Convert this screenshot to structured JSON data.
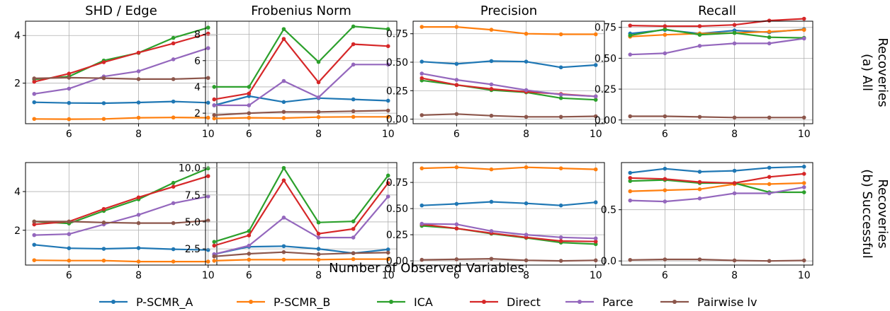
{
  "figure": {
    "xlabel": "Number of Observed Variables",
    "row_labels": [
      [
        "(a) All",
        "Recoveries"
      ],
      [
        "(b) Successful",
        "Recoveries"
      ]
    ],
    "legend": [
      {
        "name": "P-SCMR_A",
        "color": "#1f77b4"
      },
      {
        "name": "P-SCMR_B",
        "color": "#ff7f0e"
      },
      {
        "name": "ICA",
        "color": "#2ca02c"
      },
      {
        "name": "Direct",
        "color": "#d62728"
      },
      {
        "name": "Parce",
        "color": "#9467bd"
      },
      {
        "name": "Pairwise lv",
        "color": "#8c564b"
      }
    ]
  },
  "chart_data": [
    {
      "type": "line",
      "row": 0,
      "col": 0,
      "title": "SHD / Edge",
      "x": [
        5,
        6,
        7,
        8,
        9,
        10
      ],
      "xticks": [
        6,
        8,
        10
      ],
      "ylim": [
        0.3,
        4.6
      ],
      "yticks": [
        2,
        4
      ],
      "ytick_labels": [
        "2",
        "4"
      ],
      "grid": true,
      "series": [
        {
          "name": "P-SCMR_A",
          "values": [
            1.2,
            1.17,
            1.16,
            1.19,
            1.23,
            1.18
          ]
        },
        {
          "name": "P-SCMR_B",
          "values": [
            0.5,
            0.49,
            0.5,
            0.55,
            0.56,
            0.55
          ]
        },
        {
          "name": "ICA",
          "values": [
            2.16,
            2.28,
            2.95,
            3.27,
            3.9,
            4.33
          ]
        },
        {
          "name": "Direct",
          "values": [
            2.06,
            2.4,
            2.88,
            3.28,
            3.67,
            4.08
          ]
        },
        {
          "name": "Parce",
          "values": [
            1.55,
            1.77,
            2.28,
            2.5,
            3.0,
            3.47
          ]
        },
        {
          "name": "Pairwise lv",
          "values": [
            2.2,
            2.23,
            2.21,
            2.17,
            2.17,
            2.22
          ]
        }
      ]
    },
    {
      "type": "line",
      "row": 0,
      "col": 1,
      "title": "Frobenius Norm",
      "x": [
        5,
        6,
        7,
        8,
        9,
        10
      ],
      "xticks": [
        6,
        8,
        10
      ],
      "ylim": [
        1.2,
        9.0
      ],
      "yticks": [
        2,
        4,
        6,
        8
      ],
      "ytick_labels": [
        "2",
        "4",
        "6",
        "8"
      ],
      "grid": true,
      "series": [
        {
          "name": "P-SCMR_A",
          "values": [
            2.6,
            3.3,
            2.85,
            3.15,
            3.05,
            2.95
          ]
        },
        {
          "name": "P-SCMR_B",
          "values": [
            1.6,
            1.65,
            1.63,
            1.7,
            1.72,
            1.72
          ]
        },
        {
          "name": "ICA",
          "values": [
            4.0,
            4.0,
            8.4,
            5.9,
            8.6,
            8.4
          ]
        },
        {
          "name": "Direct",
          "values": [
            3.05,
            3.5,
            7.65,
            4.35,
            7.25,
            7.1
          ]
        },
        {
          "name": "Parce",
          "values": [
            2.6,
            2.6,
            4.45,
            3.2,
            5.7,
            5.7
          ]
        },
        {
          "name": "Pairwise lv",
          "values": [
            1.85,
            2.0,
            2.1,
            2.1,
            2.15,
            2.2
          ]
        }
      ]
    },
    {
      "type": "line",
      "row": 0,
      "col": 2,
      "title": "Precision",
      "x": [
        5,
        6,
        7,
        8,
        9,
        10
      ],
      "xticks": [
        6,
        8,
        10
      ],
      "ylim": [
        -0.04,
        0.86
      ],
      "yticks": [
        0,
        0.25,
        0.5,
        0.75
      ],
      "ytick_labels": [
        "0.00",
        "0.25",
        "0.50",
        "0.75"
      ],
      "grid": true,
      "series": [
        {
          "name": "P-SCMR_A",
          "values": [
            0.505,
            0.485,
            0.51,
            0.505,
            0.455,
            0.475
          ]
        },
        {
          "name": "P-SCMR_B",
          "values": [
            0.81,
            0.81,
            0.785,
            0.75,
            0.745,
            0.745
          ]
        },
        {
          "name": "ICA",
          "values": [
            0.34,
            0.3,
            0.255,
            0.235,
            0.185,
            0.17
          ]
        },
        {
          "name": "Direct",
          "values": [
            0.36,
            0.3,
            0.265,
            0.24,
            0.22,
            0.2
          ]
        },
        {
          "name": "Parce",
          "values": [
            0.4,
            0.345,
            0.305,
            0.255,
            0.215,
            0.2
          ]
        },
        {
          "name": "Pairwise lv",
          "values": [
            0.035,
            0.045,
            0.03,
            0.02,
            0.02,
            0.025
          ]
        }
      ]
    },
    {
      "type": "line",
      "row": 0,
      "col": 3,
      "title": "Recall",
      "x": [
        5,
        6,
        7,
        8,
        9,
        10
      ],
      "xticks": [
        6,
        8,
        10
      ],
      "ylim": [
        -0.03,
        0.8
      ],
      "yticks": [
        0,
        0.25,
        0.5,
        0.75
      ],
      "ytick_labels": [
        "0.00",
        "0.25",
        "0.50",
        "0.75"
      ],
      "grid": true,
      "series": [
        {
          "name": "P-SCMR_A",
          "values": [
            0.7,
            0.73,
            0.7,
            0.725,
            0.71,
            0.735
          ]
        },
        {
          "name": "P-SCMR_B",
          "values": [
            0.675,
            0.69,
            0.7,
            0.705,
            0.715,
            0.73
          ]
        },
        {
          "name": "ICA",
          "values": [
            0.685,
            0.735,
            0.69,
            0.705,
            0.67,
            0.665
          ]
        },
        {
          "name": "Direct",
          "values": [
            0.765,
            0.76,
            0.76,
            0.77,
            0.805,
            0.82
          ]
        },
        {
          "name": "Parce",
          "values": [
            0.53,
            0.54,
            0.6,
            0.62,
            0.62,
            0.66
          ]
        },
        {
          "name": "Pairwise lv",
          "values": [
            0.03,
            0.03,
            0.025,
            0.02,
            0.02,
            0.02
          ]
        }
      ]
    },
    {
      "type": "line",
      "row": 1,
      "col": 0,
      "title": "",
      "x": [
        5,
        6,
        7,
        8,
        9,
        10
      ],
      "xticks": [
        6,
        8,
        10
      ],
      "ylim": [
        0.2,
        5.5
      ],
      "yticks": [
        2,
        4
      ],
      "ytick_labels": [
        "2",
        "4"
      ],
      "grid": true,
      "series": [
        {
          "name": "P-SCMR_A",
          "values": [
            1.25,
            1.07,
            1.04,
            1.08,
            1.02,
            0.98
          ]
        },
        {
          "name": "P-SCMR_B",
          "values": [
            0.45,
            0.43,
            0.43,
            0.38,
            0.38,
            0.38
          ]
        },
        {
          "name": "ICA",
          "values": [
            2.45,
            2.35,
            3.0,
            3.6,
            4.45,
            5.2
          ]
        },
        {
          "name": "Direct",
          "values": [
            2.3,
            2.45,
            3.1,
            3.7,
            4.25,
            4.8
          ]
        },
        {
          "name": "Parce",
          "values": [
            1.75,
            1.8,
            2.3,
            2.8,
            3.4,
            3.75
          ]
        },
        {
          "name": "Pairwise lv",
          "values": [
            2.45,
            2.45,
            2.4,
            2.37,
            2.37,
            2.5
          ]
        }
      ]
    },
    {
      "type": "line",
      "row": 1,
      "col": 1,
      "title": "",
      "x": [
        5,
        6,
        7,
        8,
        9,
        10
      ],
      "xticks": [
        6,
        8,
        10
      ],
      "ylim": [
        1.0,
        10.5
      ],
      "yticks": [
        2.5,
        5.0,
        7.5,
        10.0
      ],
      "ytick_labels": [
        "2.5",
        "5.0",
        "7.5",
        "10.0"
      ],
      "grid": true,
      "series": [
        {
          "name": "P-SCMR_A",
          "values": [
            2.0,
            2.7,
            2.75,
            2.5,
            2.1,
            2.45
          ]
        },
        {
          "name": "P-SCMR_B",
          "values": [
            1.4,
            1.5,
            1.5,
            1.5,
            1.55,
            1.55
          ]
        },
        {
          "name": "ICA",
          "values": [
            3.15,
            4.15,
            10.0,
            4.95,
            5.05,
            9.3
          ]
        },
        {
          "name": "Direct",
          "values": [
            2.8,
            3.75,
            8.85,
            3.9,
            4.35,
            8.6
          ]
        },
        {
          "name": "Parce",
          "values": [
            2.0,
            2.8,
            5.4,
            3.55,
            3.55,
            7.35
          ]
        },
        {
          "name": "Pairwise lv",
          "values": [
            1.8,
            2.05,
            2.2,
            2.0,
            2.1,
            2.15
          ]
        }
      ]
    },
    {
      "type": "line",
      "row": 1,
      "col": 2,
      "title": "",
      "x": [
        5,
        6,
        7,
        8,
        9,
        10
      ],
      "xticks": [
        6,
        8,
        10
      ],
      "ylim": [
        -0.04,
        0.94
      ],
      "yticks": [
        0,
        0.25,
        0.5,
        0.75
      ],
      "ytick_labels": [
        "0.00",
        "0.25",
        "0.50",
        "0.75"
      ],
      "grid": true,
      "series": [
        {
          "name": "P-SCMR_A",
          "values": [
            0.53,
            0.545,
            0.565,
            0.55,
            0.53,
            0.56
          ]
        },
        {
          "name": "P-SCMR_B",
          "values": [
            0.885,
            0.895,
            0.875,
            0.895,
            0.885,
            0.875
          ]
        },
        {
          "name": "ICA",
          "values": [
            0.335,
            0.31,
            0.26,
            0.22,
            0.175,
            0.16
          ]
        },
        {
          "name": "Direct",
          "values": [
            0.35,
            0.31,
            0.265,
            0.225,
            0.19,
            0.185
          ]
        },
        {
          "name": "Parce",
          "values": [
            0.355,
            0.35,
            0.285,
            0.25,
            0.225,
            0.215
          ]
        },
        {
          "name": "Pairwise lv",
          "values": [
            0.01,
            0.015,
            0.02,
            0.005,
            0.0,
            0.005
          ]
        }
      ]
    },
    {
      "type": "line",
      "row": 1,
      "col": 3,
      "title": "",
      "x": [
        5,
        6,
        7,
        8,
        9,
        10
      ],
      "xticks": [
        6,
        8,
        10
      ],
      "ylim": [
        -0.04,
        0.96
      ],
      "yticks": [
        0,
        0.5
      ],
      "ytick_labels": [
        "0.0",
        "0.5"
      ],
      "grid": true,
      "series": [
        {
          "name": "P-SCMR_A",
          "values": [
            0.86,
            0.9,
            0.87,
            0.88,
            0.91,
            0.92
          ]
        },
        {
          "name": "P-SCMR_B",
          "values": [
            0.68,
            0.69,
            0.7,
            0.75,
            0.75,
            0.76
          ]
        },
        {
          "name": "ICA",
          "values": [
            0.78,
            0.79,
            0.76,
            0.76,
            0.67,
            0.67
          ]
        },
        {
          "name": "Direct",
          "values": [
            0.81,
            0.8,
            0.77,
            0.76,
            0.82,
            0.85
          ]
        },
        {
          "name": "Parce",
          "values": [
            0.59,
            0.58,
            0.61,
            0.66,
            0.66,
            0.72
          ]
        },
        {
          "name": "Pairwise lv",
          "values": [
            0.01,
            0.015,
            0.015,
            0.005,
            0.0,
            0.005
          ]
        }
      ]
    }
  ]
}
